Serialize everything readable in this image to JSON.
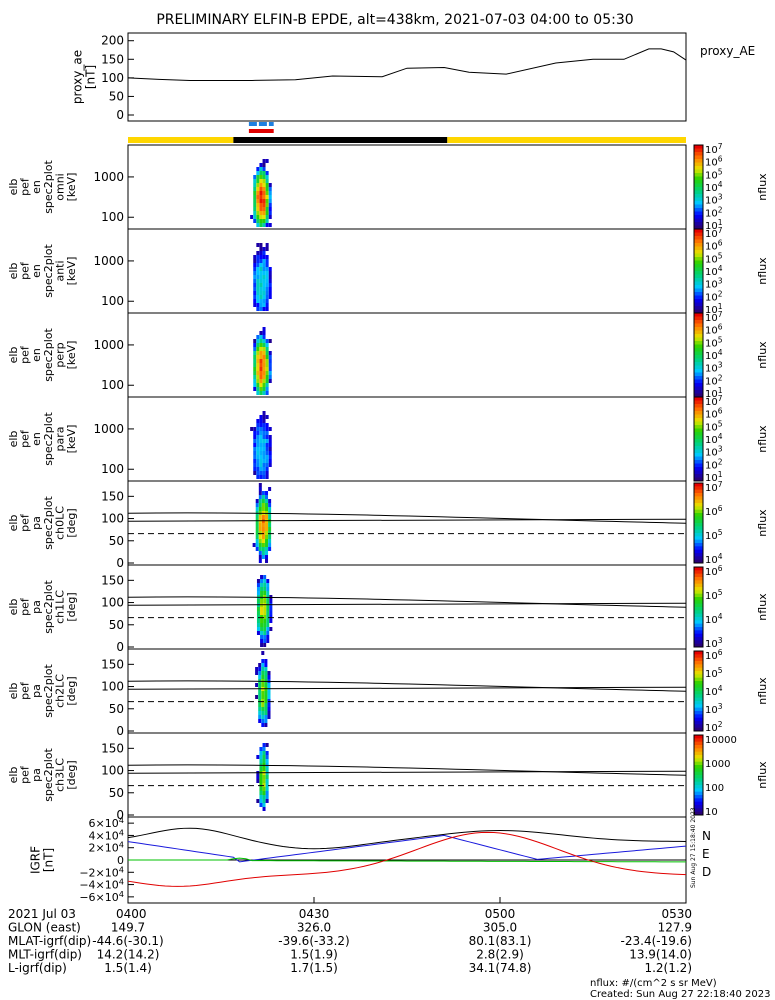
{
  "title": "PRELIMINARY ELFIN-B EPDE, alt=438km, 2021-07-03 04:00 to 05:30",
  "created": "Created: Sun Aug 27 22:18:40 2023",
  "units_note": "nflux: #/(cm^2 s sr MeV)",
  "side_stamp": "Sun Aug 27 15:18:40 2023",
  "cb_label": "nflux",
  "chart_data": {
    "type": "heatmap",
    "time_range": [
      "04:00",
      "05:30"
    ],
    "proxy_ae": {
      "ylabel": [
        "proxy_ae",
        "[nT]"
      ],
      "right_label": "proxy_AE",
      "yticks": [
        "200",
        "150",
        "100",
        "50",
        "0"
      ],
      "ylim": [
        0,
        210
      ],
      "t": [
        0,
        5,
        10,
        20,
        27,
        33,
        37,
        41,
        45,
        51,
        55,
        61,
        69,
        75,
        80,
        84,
        86,
        88,
        90
      ],
      "v": [
        100,
        96,
        93,
        93,
        95,
        105,
        104,
        103,
        126,
        128,
        115,
        110,
        140,
        150,
        150,
        178,
        178,
        170,
        148
      ]
    },
    "bars": {
      "dashed_blue_start": 19.5,
      "dashed_blue_end": 23.5,
      "red_start": 19.5,
      "red_end": 23.5,
      "yellow_1_end": 17,
      "black_end": 51.5
    },
    "energy_panels": [
      {
        "ylabel": [
          "elb",
          "pef",
          "en",
          "spec2plot",
          "omni",
          "[keV]"
        ],
        "yticks": [
          "1000",
          "100"
        ],
        "cb_ticks": [
          "10^7",
          "10^6",
          "10^5",
          "10^4",
          "10^3",
          "10^2",
          "10^1"
        ],
        "intensity": 1.0
      },
      {
        "ylabel": [
          "elb",
          "pef",
          "en",
          "spec2plot",
          "anti",
          "[keV]"
        ],
        "yticks": [
          "1000",
          "100"
        ],
        "cb_ticks": [
          "10^7",
          "10^6",
          "10^5",
          "10^4",
          "10^3",
          "10^2",
          "10^1"
        ],
        "intensity": 0.35
      },
      {
        "ylabel": [
          "elb",
          "pef",
          "en",
          "spec2plot",
          "perp",
          "[keV]"
        ],
        "yticks": [
          "1000",
          "100"
        ],
        "cb_ticks": [
          "10^7",
          "10^6",
          "10^5",
          "10^4",
          "10^3",
          "10^2",
          "10^1"
        ],
        "intensity": 0.95
      },
      {
        "ylabel": [
          "elb",
          "pef",
          "en",
          "spec2plot",
          "para",
          "[keV]"
        ],
        "yticks": [
          "1000",
          "100"
        ],
        "cb_ticks": [
          "10^7",
          "10^6",
          "10^5",
          "10^4",
          "10^3",
          "10^2",
          "10^1"
        ],
        "intensity": 0.3
      }
    ],
    "pa_panels": [
      {
        "ylabel": [
          "elb",
          "pef",
          "pa",
          "spec2plot",
          "ch0LC",
          "[deg]"
        ],
        "yticks": [
          "150",
          "100",
          "50",
          "0"
        ],
        "cb_ticks": [
          "10^7",
          "10^6",
          "10^5",
          "10^4"
        ],
        "intensity": 0.9
      },
      {
        "ylabel": [
          "elb",
          "pef",
          "pa",
          "spec2plot",
          "ch1LC",
          "[deg]"
        ],
        "yticks": [
          "150",
          "100",
          "50",
          "0"
        ],
        "cb_ticks": [
          "10^6",
          "10^5",
          "10^4",
          "10^3"
        ],
        "intensity": 0.75
      },
      {
        "ylabel": [
          "elb",
          "pef",
          "pa",
          "spec2plot",
          "ch2LC",
          "[deg]"
        ],
        "yticks": [
          "150",
          "100",
          "50",
          "0"
        ],
        "cb_ticks": [
          "10^6",
          "10^5",
          "10^4",
          "10^3",
          "10^2"
        ],
        "intensity": 0.7
      },
      {
        "ylabel": [
          "elb",
          "pef",
          "pa",
          "spec2plot",
          "ch3LC",
          "[deg]"
        ],
        "yticks": [
          "150",
          "100",
          "50",
          "0"
        ],
        "cb_ticks": [
          "10000",
          "1000",
          "100",
          "10"
        ],
        "intensity": 0.7
      }
    ],
    "igrf": {
      "ylabel": [
        "IGRF",
        "[nT]"
      ],
      "yticks": [
        "6×10^4",
        "4×10^4",
        "2×10^4",
        "0",
        "−2×10^4",
        "−4×10^4",
        "−6×10^4"
      ],
      "legend": [
        "N",
        "E",
        "D"
      ],
      "legend_colors": [
        "#1a1adc",
        "#00c000",
        "#e00000"
      ]
    },
    "table": {
      "rows": [
        [
          "2021 Jul 03",
          "0400",
          "0430",
          "0500",
          "0530"
        ],
        [
          "GLON (east)",
          "149.7",
          "326.0",
          "305.0",
          "127.9"
        ],
        [
          "MLAT-igrf(dip)",
          "-44.6(-30.1)",
          "-39.6(-33.2)",
          "80.1(83.1)",
          "-23.4(-19.6)"
        ],
        [
          "MLT-igrf(dip)",
          "14.2(14.2)",
          "1.5(1.9)",
          "2.8(2.9)",
          "13.9(14.0)"
        ],
        [
          "L-igrf(dip)",
          "1.5(1.4)",
          "1.7(1.5)",
          "34.1(74.8)",
          "1.2(1.2)"
        ]
      ]
    }
  }
}
